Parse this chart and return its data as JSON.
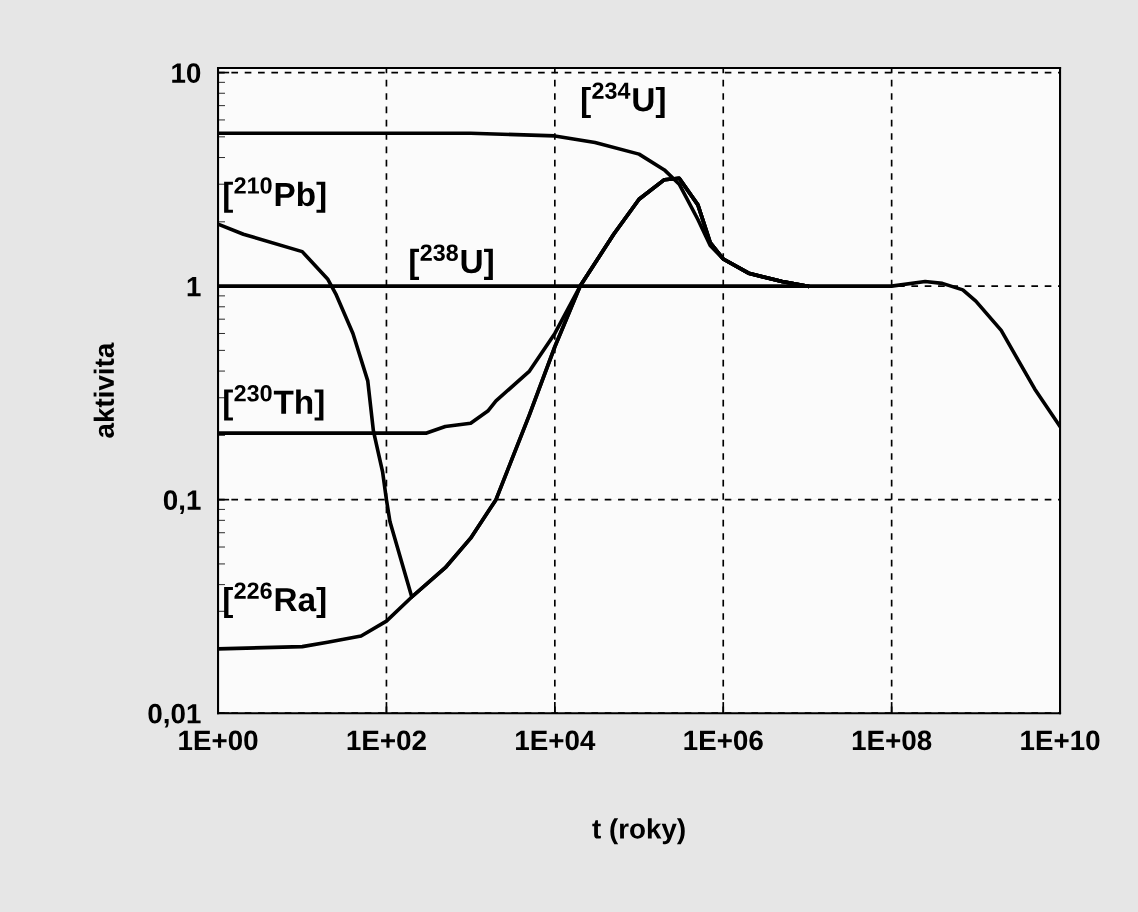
{
  "chart_data": {
    "type": "line",
    "xlabel": "t (roky)",
    "ylabel": "aktivita",
    "log": "xy",
    "grid": true,
    "line_style": "solid",
    "marker": "none",
    "xlim": [
      1,
      10000000000
    ],
    "ylim": [
      0.01,
      10.5
    ],
    "xticks": [
      {
        "value": 1,
        "label": "1E+00"
      },
      {
        "value": 100,
        "label": "1E+02"
      },
      {
        "value": 10000,
        "label": "1E+04"
      },
      {
        "value": 1000000,
        "label": "1E+06"
      },
      {
        "value": 100000000,
        "label": "1E+08"
      },
      {
        "value": 10000000000,
        "label": "1E+10"
      }
    ],
    "yticks": [
      {
        "value": 0.01,
        "label": "0,01"
      },
      {
        "value": 0.1,
        "label": "0,1"
      },
      1,
      10
    ],
    "series": [
      {
        "name": "[$^{238}$U]",
        "color": "#000000",
        "x": [
          1,
          100000000,
          250000000,
          400000000,
          700000000,
          1000000000,
          2000000000,
          5000000000,
          10000000000
        ],
        "values": [
          1,
          1,
          1.05,
          1.03,
          0.96,
          0.85,
          0.62,
          0.33,
          0.22
        ]
      },
      {
        "name": "[$^{234}$U]",
        "color": "#000000",
        "x": [
          1,
          1000,
          10000,
          30000,
          100000,
          200000,
          300000,
          500000,
          700000,
          1000000,
          2000000,
          5000000,
          10000000
        ],
        "values": [
          5.2,
          5.2,
          5.05,
          4.7,
          4.15,
          3.5,
          3.0,
          2.05,
          1.55,
          1.34,
          1.15,
          1.05,
          1.0
        ]
      },
      {
        "name": "[$^{230}$Th]",
        "color": "#000000",
        "x": [
          1,
          300,
          500,
          1000,
          1600,
          2000,
          5000,
          10000,
          20000,
          50000,
          100000,
          200000,
          300000,
          500000,
          700000,
          1000000,
          2000000,
          5000000,
          10000000
        ],
        "values": [
          0.205,
          0.205,
          0.22,
          0.228,
          0.26,
          0.29,
          0.4,
          0.6,
          1.0,
          1.75,
          2.55,
          3.15,
          3.2,
          2.4,
          1.6,
          1.34,
          1.15,
          1.05,
          1.0
        ]
      },
      {
        "name": "[$^{226}$Ra]",
        "color": "#000000",
        "x": [
          1,
          10,
          20,
          50,
          100,
          200,
          500,
          1000,
          2000,
          5000,
          10000,
          20000,
          50000,
          100000,
          200000,
          300000,
          500000,
          700000,
          1000000,
          2000000,
          5000000,
          10000000
        ],
        "values": [
          0.02,
          0.0205,
          0.0215,
          0.023,
          0.027,
          0.035,
          0.048,
          0.066,
          0.1,
          0.25,
          0.52,
          1.0,
          1.75,
          2.55,
          3.15,
          3.2,
          2.4,
          1.6,
          1.34,
          1.15,
          1.05,
          1.0
        ]
      },
      {
        "name": "[$^{210}$Pb]",
        "color": "#000000",
        "x": [
          1,
          2,
          10,
          20,
          25,
          40,
          60,
          70,
          90,
          100,
          110,
          200,
          500,
          1000,
          2000,
          5000,
          10000,
          20000,
          50000,
          100000,
          200000,
          300000,
          500000,
          700000,
          1000000,
          2000000,
          5000000,
          10000000
        ],
        "values": [
          1.95,
          1.75,
          1.45,
          1.08,
          0.92,
          0.6,
          0.36,
          0.21,
          0.135,
          0.1,
          0.079,
          0.035,
          0.048,
          0.066,
          0.1,
          0.25,
          0.52,
          1.0,
          1.75,
          2.55,
          3.15,
          3.2,
          2.4,
          1.6,
          1.34,
          1.15,
          1.05,
          1.0
        ]
      }
    ]
  }
}
